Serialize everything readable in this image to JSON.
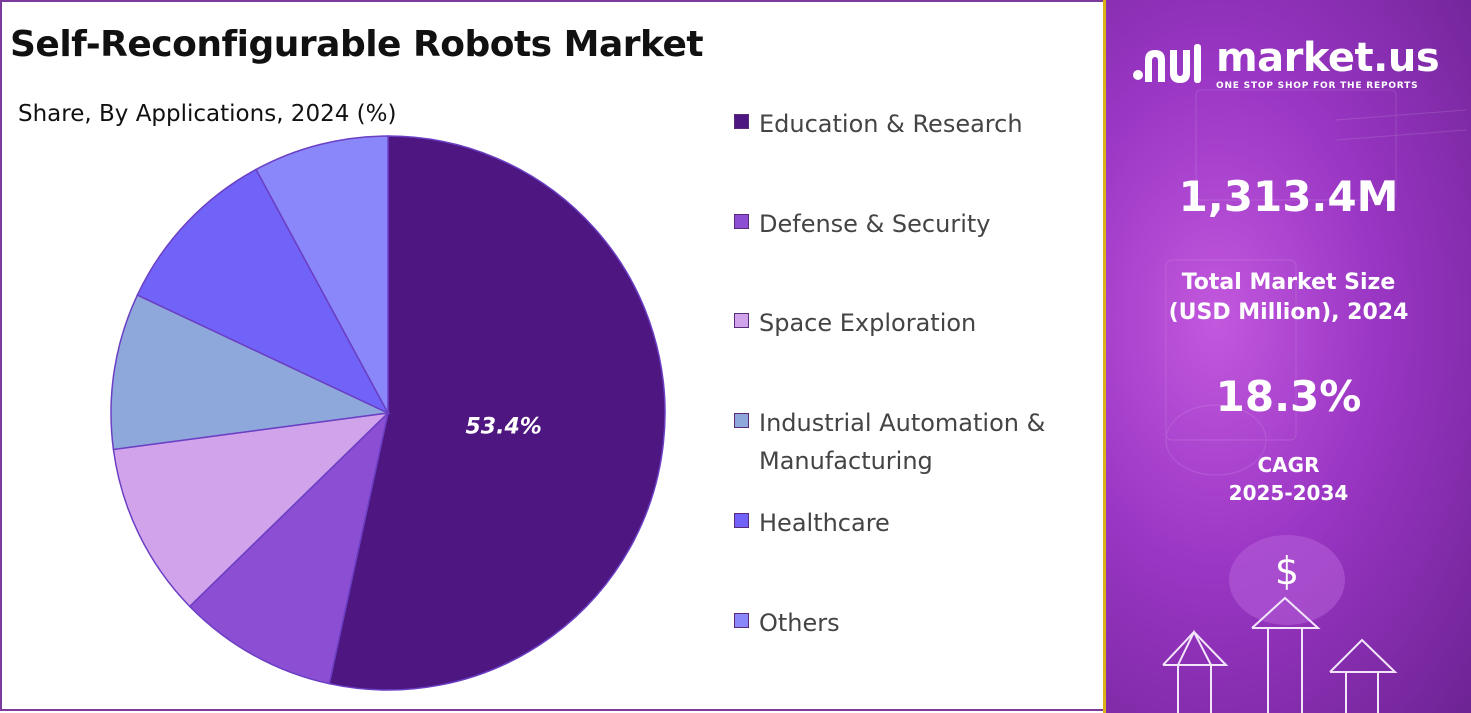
{
  "title": "Self-Reconfigurable Robots Market",
  "subtitle": "Share, By Applications, 2024 (%)",
  "chart_data": {
    "type": "pie",
    "categories": [
      "Education & Research",
      "Defense & Security",
      "Space Exploration",
      "Industrial Automation & Manufacturing",
      "Healthcare",
      "Others"
    ],
    "values": [
      53.4,
      9.3,
      10.2,
      9.1,
      10.1,
      7.9
    ],
    "data_labels": [
      "53.4%",
      "",
      "",
      "",
      "",
      ""
    ],
    "colors": [
      "#4e1681",
      "#8c4ed2",
      "#d1a3ea",
      "#8ea8dc",
      "#7263f8",
      "#8a87fb"
    ],
    "legend_position": "right"
  },
  "brand": {
    "name": "market.us",
    "tagline": "ONE STOP SHOP FOR THE REPORTS"
  },
  "stats": {
    "market_size_value": "1,313.4M",
    "market_size_label_line1": "Total Market Size",
    "market_size_label_line2": "(USD Million), 2024",
    "cagr_value": "18.3%",
    "cagr_label_line1": "CAGR",
    "cagr_label_line2": "2025-2034"
  },
  "icons": {
    "dollar": "$",
    "arrows": "up-arrows-icon"
  }
}
